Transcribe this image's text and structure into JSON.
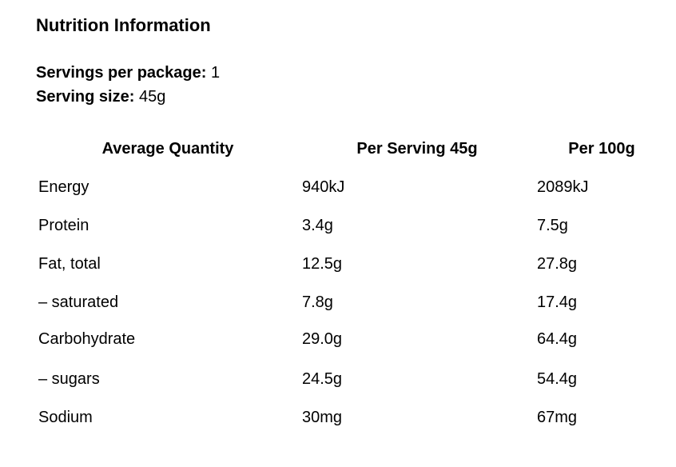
{
  "title": "Nutrition Information",
  "servings": [
    {
      "label": "Servings per package:",
      "value": "1"
    },
    {
      "label": "Serving size:",
      "value": "45g"
    }
  ],
  "table": {
    "header": [
      "Average Quantity",
      "Per Serving 45g",
      "Per 100g"
    ],
    "rows": [
      [
        "Energy",
        "940kJ",
        "2089kJ"
      ],
      [
        "Protein",
        "3.4g",
        "7.5g"
      ],
      [
        "Fat, total",
        "12.5g",
        "27.8g"
      ],
      [
        "– saturated",
        "7.8g",
        "17.4g"
      ],
      [
        "Carbohydrate",
        "29.0g",
        "64.4g"
      ],
      [
        "– sugars",
        "24.5g",
        "54.4g"
      ],
      [
        "Sodium",
        "30mg",
        "67mg"
      ]
    ]
  }
}
